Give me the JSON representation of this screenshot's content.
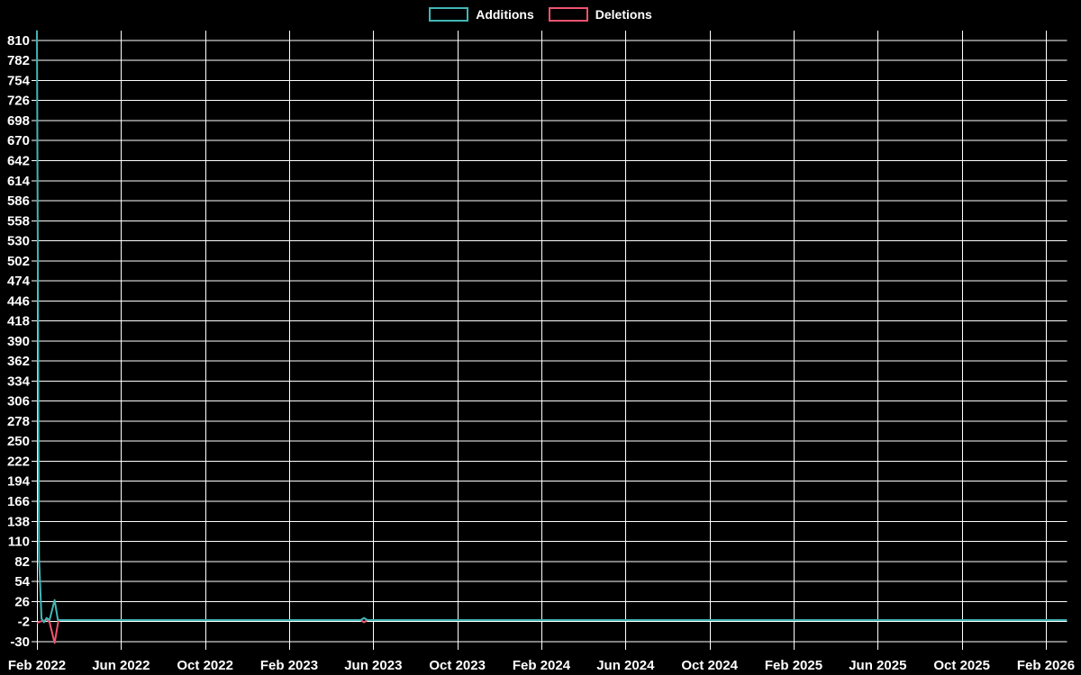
{
  "legend": {
    "additions_label": "Additions",
    "deletions_label": "Deletions"
  },
  "colors": {
    "background": "#000000",
    "grid": "#ffffff",
    "text": "#ffffff",
    "additions": "#42b6b6",
    "deletions": "#f0546e"
  },
  "chart_data": {
    "type": "line",
    "title": "",
    "xlabel": "",
    "ylabel": "",
    "grid": true,
    "legend_position": "top-center",
    "x_axis": {
      "unit": "months since Feb 2022",
      "tick_labels": [
        "Feb 2022",
        "Jun 2022",
        "Oct 2022",
        "Feb 2023",
        "Jun 2023",
        "Oct 2023",
        "Feb 2024",
        "Jun 2024",
        "Oct 2024",
        "Feb 2025",
        "Jun 2025",
        "Oct 2025",
        "Feb 2026"
      ],
      "tick_month_offsets": [
        0,
        4,
        8,
        12,
        16,
        20,
        24,
        28,
        32,
        36,
        40,
        44,
        48
      ],
      "range_month_offsets": [
        0,
        49.7
      ]
    },
    "y_axis": {
      "tick_values": [
        -30,
        -2,
        26,
        54,
        82,
        110,
        138,
        166,
        194,
        222,
        250,
        278,
        306,
        334,
        362,
        390,
        418,
        446,
        474,
        502,
        530,
        558,
        586,
        614,
        642,
        670,
        698,
        726,
        754,
        782,
        810
      ],
      "tick_step": 28,
      "min": -30,
      "max": 826
    },
    "series": [
      {
        "name": "Additions",
        "color_key": "additions",
        "points": [
          [
            0,
            824
          ],
          [
            0.1,
            88
          ],
          [
            0.22,
            2
          ],
          [
            0.34,
            -3
          ],
          [
            0.46,
            3
          ],
          [
            0.6,
            0
          ],
          [
            0.84,
            28
          ],
          [
            1.0,
            0
          ],
          [
            15.4,
            0
          ],
          [
            15.56,
            3
          ],
          [
            15.72,
            0
          ],
          [
            49.0,
            0
          ]
        ]
      },
      {
        "name": "Deletions",
        "color_key": "deletions",
        "points": [
          [
            0,
            -4
          ],
          [
            0.15,
            -2
          ],
          [
            0.34,
            -1
          ],
          [
            0.46,
            1
          ],
          [
            0.6,
            -3
          ],
          [
            0.84,
            -32
          ],
          [
            1.02,
            -1
          ],
          [
            1.15,
            0
          ],
          [
            15.4,
            0
          ],
          [
            15.56,
            -3
          ],
          [
            15.72,
            0
          ],
          [
            49.0,
            0
          ]
        ]
      }
    ]
  }
}
